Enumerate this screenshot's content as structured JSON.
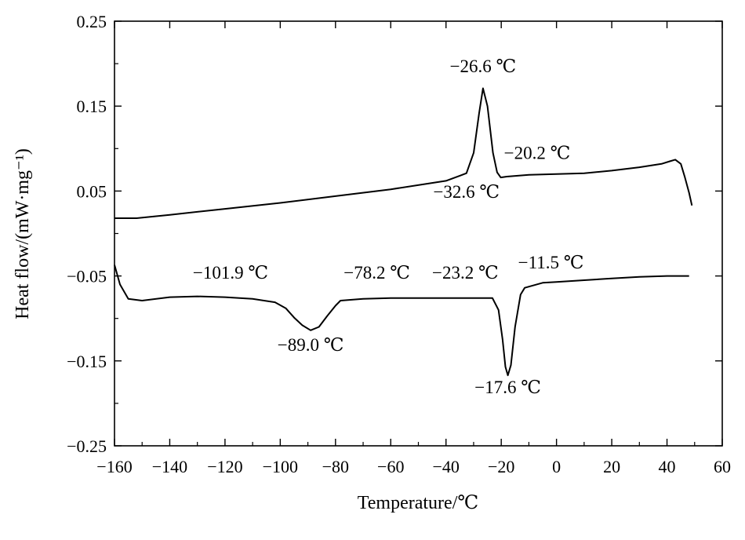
{
  "chart_data": {
    "type": "line",
    "title": "",
    "xlabel": "Temperature/℃",
    "ylabel": "Heat flow/(mW·mg⁻¹)",
    "xlim": [
      -160,
      60
    ],
    "ylim": [
      -0.25,
      0.25
    ],
    "x_ticks": [
      -160,
      -140,
      -120,
      -100,
      -80,
      -60,
      -40,
      -20,
      0,
      20,
      40,
      60
    ],
    "x_tick_labels": [
      "−160",
      "−140",
      "−120",
      "−100",
      "−80",
      "−60",
      "−40",
      "−20",
      "0",
      "20",
      "40",
      "60"
    ],
    "y_ticks": [
      0.25,
      0.15,
      0.05,
      -0.05,
      -0.15,
      -0.25
    ],
    "y_tick_labels": [
      "0.25",
      "0.15",
      "0.05",
      "−0.05",
      "−0.15",
      "−0.25"
    ],
    "grid": false,
    "series": [
      {
        "color": "#000000",
        "x": [
          -160,
          -152,
          -140,
          -120,
          -100,
          -80,
          -60,
          -40,
          -35,
          -32.6,
          -30,
          -28,
          -26.6,
          -25,
          -23,
          -21.5,
          -20.2,
          -18,
          -10,
          0,
          10,
          20,
          30,
          38,
          41,
          43,
          45,
          46.5,
          48,
          49
        ],
        "y": [
          0.018,
          0.018,
          0.022,
          0.029,
          0.036,
          0.044,
          0.052,
          0.062,
          0.068,
          0.071,
          0.095,
          0.142,
          0.171,
          0.15,
          0.095,
          0.072,
          0.066,
          0.067,
          0.069,
          0.07,
          0.071,
          0.074,
          0.078,
          0.082,
          0.085,
          0.087,
          0.082,
          0.066,
          0.048,
          0.033
        ]
      },
      {
        "color": "#000000",
        "x": [
          -160,
          -158,
          -155,
          -150,
          -140,
          -130,
          -120,
          -110,
          -101.9,
          -98,
          -95,
          -92,
          -89,
          -86,
          -83,
          -80,
          -78.2,
          -70,
          -60,
          -50,
          -40,
          -30,
          -23.2,
          -21,
          -19.5,
          -18.5,
          -17.6,
          -16.5,
          -15,
          -13,
          -11.5,
          -5,
          0,
          10,
          20,
          30,
          40,
          48
        ],
        "y": [
          -0.037,
          -0.06,
          -0.077,
          -0.079,
          -0.075,
          -0.074,
          -0.075,
          -0.077,
          -0.081,
          -0.088,
          -0.099,
          -0.108,
          -0.114,
          -0.11,
          -0.097,
          -0.085,
          -0.079,
          -0.077,
          -0.076,
          -0.076,
          -0.076,
          -0.076,
          -0.076,
          -0.09,
          -0.125,
          -0.157,
          -0.167,
          -0.155,
          -0.11,
          -0.072,
          -0.064,
          -0.058,
          -0.057,
          -0.055,
          -0.053,
          -0.051,
          -0.05,
          -0.05
        ]
      }
    ],
    "annotations": [
      {
        "text": "−26.6 ℃",
        "x": -26.6,
        "y": 0.19
      },
      {
        "text": "−20.2 ℃",
        "x": -7,
        "y": 0.088
      },
      {
        "text": "−32.6 ℃",
        "x": -32.6,
        "y": 0.042
      },
      {
        "text": "−101.9 ℃",
        "x": -118,
        "y": -0.053
      },
      {
        "text": "−78.2 ℃",
        "x": -65,
        "y": -0.053
      },
      {
        "text": "−23.2 ℃",
        "x": -33,
        "y": -0.053
      },
      {
        "text": "−11.5 ℃",
        "x": -2,
        "y": -0.041
      },
      {
        "text": "−89.0 ℃",
        "x": -89,
        "y": -0.138
      },
      {
        "text": "−17.6 ℃",
        "x": -17.6,
        "y": -0.188
      }
    ]
  }
}
